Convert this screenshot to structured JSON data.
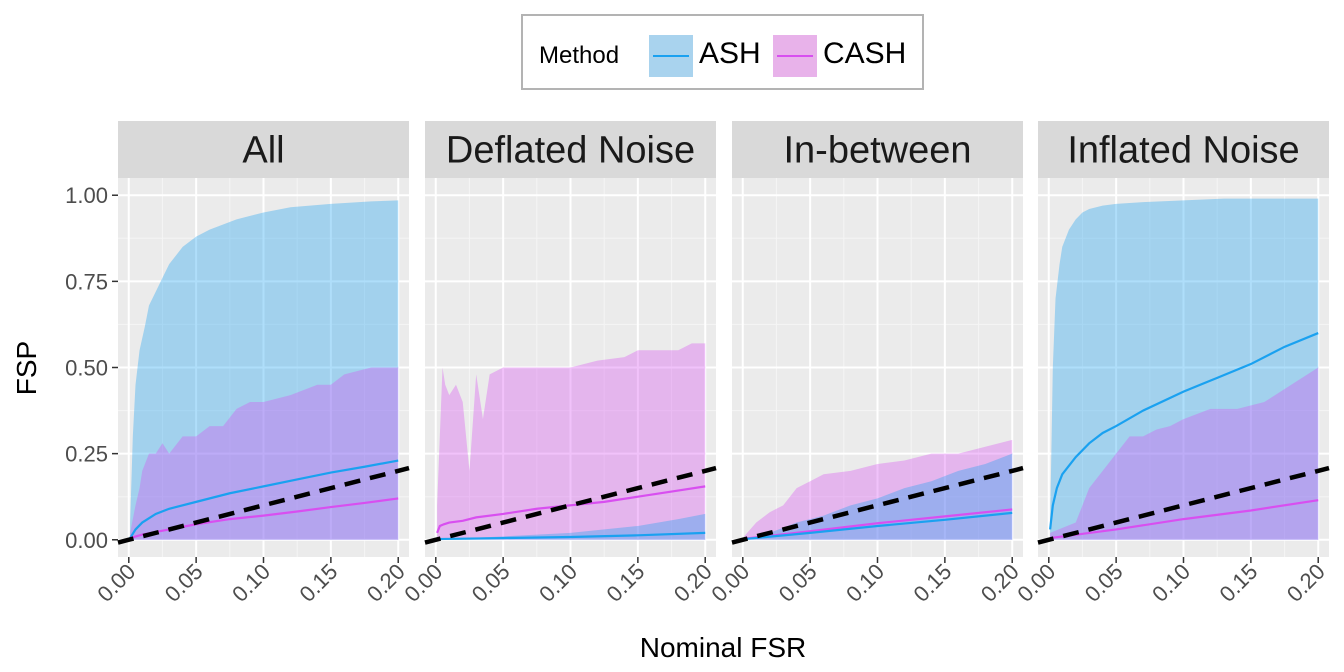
{
  "chart_data": {
    "type": "area",
    "xlabel": "Nominal FSR",
    "ylabel": "FSP",
    "xlim": [
      -0.008,
      0.208
    ],
    "ylim": [
      -0.05,
      1.05
    ],
    "x_ticks": [
      "0.00",
      "0.05",
      "0.10",
      "0.15",
      "0.20"
    ],
    "y_ticks": [
      "0.00",
      "0.25",
      "0.50",
      "0.75",
      "1.00"
    ],
    "legend": {
      "title": "Method",
      "position": "top",
      "entries": [
        {
          "name": "ASH",
          "line_color": "#1aa1f0",
          "fill_color": "#a9d3ee"
        },
        {
          "name": "CASH",
          "line_color": "#d84ff0",
          "fill_color": "#e8b2ea"
        }
      ]
    },
    "reference_line": {
      "style": "dashed",
      "color": "#000000",
      "x": [
        0,
        0.2
      ],
      "y": [
        0,
        0.2
      ]
    },
    "panels": [
      {
        "title": "All",
        "series": [
          {
            "name": "ASH",
            "band_upper": {
              "x": [
                0.001,
                0.003,
                0.005,
                0.008,
                0.012,
                0.015,
                0.02,
                0.025,
                0.03,
                0.04,
                0.05,
                0.06,
                0.08,
                0.1,
                0.12,
                0.15,
                0.18,
                0.2
              ],
              "y": [
                0.05,
                0.3,
                0.45,
                0.55,
                0.62,
                0.68,
                0.72,
                0.76,
                0.8,
                0.85,
                0.88,
                0.9,
                0.93,
                0.95,
                0.965,
                0.975,
                0.982,
                0.985
              ]
            },
            "band_lower": {
              "x": [
                0.001,
                0.2
              ],
              "y": [
                0,
                0
              ]
            },
            "mean": {
              "x": [
                0.001,
                0.005,
                0.01,
                0.02,
                0.03,
                0.05,
                0.075,
                0.1,
                0.125,
                0.15,
                0.175,
                0.2
              ],
              "y": [
                0.005,
                0.03,
                0.05,
                0.075,
                0.09,
                0.11,
                0.135,
                0.155,
                0.175,
                0.195,
                0.212,
                0.23
              ]
            }
          },
          {
            "name": "CASH",
            "band_upper": {
              "x": [
                0.001,
                0.005,
                0.008,
                0.01,
                0.015,
                0.02,
                0.025,
                0.03,
                0.04,
                0.05,
                0.06,
                0.07,
                0.08,
                0.09,
                0.1,
                0.12,
                0.14,
                0.15,
                0.16,
                0.18,
                0.2
              ],
              "y": [
                0.02,
                0.1,
                0.15,
                0.2,
                0.25,
                0.25,
                0.28,
                0.25,
                0.3,
                0.3,
                0.33,
                0.33,
                0.38,
                0.4,
                0.4,
                0.42,
                0.45,
                0.45,
                0.48,
                0.5,
                0.5
              ]
            },
            "band_lower": {
              "x": [
                0.001,
                0.2
              ],
              "y": [
                0,
                0
              ]
            },
            "mean": {
              "x": [
                0.001,
                0.01,
                0.03,
                0.05,
                0.075,
                0.1,
                0.125,
                0.15,
                0.175,
                0.2
              ],
              "y": [
                0.005,
                0.015,
                0.03,
                0.045,
                0.06,
                0.07,
                0.082,
                0.095,
                0.107,
                0.12
              ]
            }
          }
        ]
      },
      {
        "title": "Deflated Noise",
        "series": [
          {
            "name": "CASH",
            "band_upper": {
              "x": [
                0.001,
                0.003,
                0.005,
                0.007,
                0.01,
                0.015,
                0.02,
                0.025,
                0.03,
                0.035,
                0.04,
                0.05,
                0.06,
                0.08,
                0.1,
                0.12,
                0.14,
                0.15,
                0.16,
                0.18,
                0.19,
                0.2
              ],
              "y": [
                0.1,
                0.3,
                0.5,
                0.45,
                0.42,
                0.45,
                0.4,
                0.2,
                0.48,
                0.35,
                0.48,
                0.5,
                0.5,
                0.5,
                0.5,
                0.52,
                0.53,
                0.55,
                0.55,
                0.55,
                0.57,
                0.57
              ]
            },
            "band_lower": {
              "x": [
                0.001,
                0.2
              ],
              "y": [
                0,
                0
              ]
            },
            "mean": {
              "x": [
                0.001,
                0.003,
                0.006,
                0.01,
                0.02,
                0.03,
                0.05,
                0.075,
                0.1,
                0.125,
                0.15,
                0.175,
                0.2
              ],
              "y": [
                0.02,
                0.04,
                0.045,
                0.05,
                0.055,
                0.065,
                0.075,
                0.09,
                0.1,
                0.11,
                0.125,
                0.14,
                0.155
              ]
            }
          },
          {
            "name": "ASH",
            "band_upper": {
              "x": [
                0.001,
                0.05,
                0.1,
                0.15,
                0.18,
                0.2
              ],
              "y": [
                0,
                0.01,
                0.02,
                0.04,
                0.06,
                0.075
              ]
            },
            "band_lower": {
              "x": [
                0.001,
                0.2
              ],
              "y": [
                0,
                0
              ]
            },
            "mean": {
              "x": [
                0.001,
                0.05,
                0.1,
                0.15,
                0.2
              ],
              "y": [
                0.002,
                0.005,
                0.008,
                0.013,
                0.02
              ]
            }
          }
        ]
      },
      {
        "title": "In-between",
        "series": [
          {
            "name": "CASH",
            "band_upper": {
              "x": [
                0.001,
                0.01,
                0.02,
                0.03,
                0.04,
                0.05,
                0.06,
                0.08,
                0.1,
                0.12,
                0.14,
                0.16,
                0.18,
                0.2
              ],
              "y": [
                0.01,
                0.05,
                0.08,
                0.1,
                0.15,
                0.17,
                0.19,
                0.2,
                0.22,
                0.23,
                0.25,
                0.25,
                0.27,
                0.29
              ]
            },
            "band_lower": {
              "x": [
                0.001,
                0.2
              ],
              "y": [
                0,
                0
              ]
            },
            "mean": {
              "x": [
                0.001,
                0.05,
                0.1,
                0.15,
                0.2
              ],
              "y": [
                0.003,
                0.025,
                0.048,
                0.068,
                0.088
              ]
            }
          },
          {
            "name": "ASH",
            "band_upper": {
              "x": [
                0.001,
                0.02,
                0.04,
                0.06,
                0.08,
                0.1,
                0.12,
                0.14,
                0.16,
                0.18,
                0.2
              ],
              "y": [
                0,
                0.02,
                0.05,
                0.07,
                0.1,
                0.12,
                0.15,
                0.17,
                0.2,
                0.22,
                0.25
              ]
            },
            "band_lower": {
              "x": [
                0.001,
                0.2
              ],
              "y": [
                0,
                0
              ]
            },
            "mean": {
              "x": [
                0.001,
                0.05,
                0.1,
                0.15,
                0.2
              ],
              "y": [
                0.002,
                0.02,
                0.04,
                0.058,
                0.078
              ]
            }
          }
        ]
      },
      {
        "title": "Inflated Noise",
        "series": [
          {
            "name": "ASH",
            "band_upper": {
              "x": [
                0.001,
                0.003,
                0.005,
                0.008,
                0.01,
                0.015,
                0.02,
                0.025,
                0.03,
                0.04,
                0.05,
                0.07,
                0.1,
                0.13,
                0.16,
                0.2
              ],
              "y": [
                0.05,
                0.5,
                0.7,
                0.8,
                0.85,
                0.9,
                0.93,
                0.95,
                0.96,
                0.97,
                0.975,
                0.98,
                0.985,
                0.99,
                0.99,
                0.99
              ]
            },
            "band_lower": {
              "x": [
                0.001,
                0.2
              ],
              "y": [
                0,
                0
              ]
            },
            "mean": {
              "x": [
                0.001,
                0.003,
                0.006,
                0.01,
                0.02,
                0.03,
                0.04,
                0.05,
                0.07,
                0.1,
                0.125,
                0.15,
                0.175,
                0.2
              ],
              "y": [
                0.03,
                0.1,
                0.15,
                0.19,
                0.24,
                0.28,
                0.31,
                0.33,
                0.375,
                0.43,
                0.47,
                0.51,
                0.56,
                0.6
              ]
            }
          },
          {
            "name": "CASH",
            "band_upper": {
              "x": [
                0.001,
                0.02,
                0.025,
                0.03,
                0.04,
                0.05,
                0.06,
                0.07,
                0.08,
                0.09,
                0.1,
                0.12,
                0.14,
                0.16,
                0.18,
                0.2
              ],
              "y": [
                0.02,
                0.05,
                0.1,
                0.15,
                0.2,
                0.25,
                0.3,
                0.3,
                0.32,
                0.33,
                0.35,
                0.38,
                0.38,
                0.4,
                0.45,
                0.5
              ]
            },
            "band_lower": {
              "x": [
                0.001,
                0.17,
                0.171,
                0.2
              ],
              "y": [
                0,
                0,
                0,
                0
              ]
            },
            "mean": {
              "x": [
                0.001,
                0.05,
                0.1,
                0.15,
                0.2
              ],
              "y": [
                0.005,
                0.03,
                0.06,
                0.085,
                0.115
              ]
            }
          }
        ]
      }
    ]
  }
}
